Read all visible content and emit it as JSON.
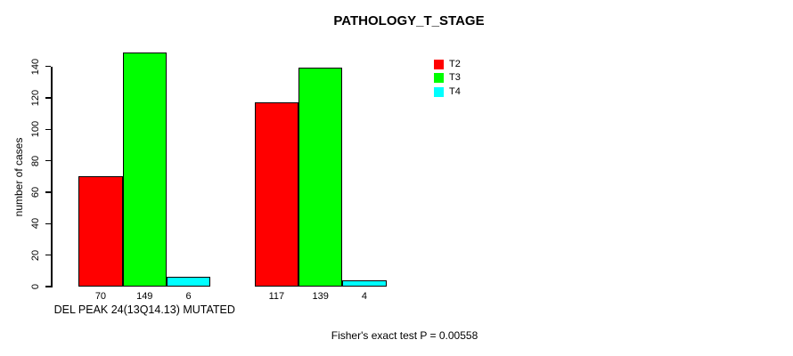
{
  "chart_data": {
    "type": "bar",
    "title": "PATHOLOGY_T_STAGE",
    "ylabel": "number of cases",
    "xlabel": "",
    "ylim": [
      0,
      140
    ],
    "yticks": [
      0,
      20,
      40,
      60,
      80,
      100,
      120,
      140
    ],
    "grid": false,
    "categories": [
      "DEL PEAK 24(13Q14.13) MUTATED",
      ""
    ],
    "series": [
      {
        "name": "T2",
        "color": "#FF0000",
        "values": [
          70,
          117
        ]
      },
      {
        "name": "T3",
        "color": "#00FF00",
        "values": [
          149,
          139
        ]
      },
      {
        "name": "T4",
        "color": "#00FFFF",
        "values": [
          6,
          4
        ]
      }
    ],
    "bar_value_labels": [
      [
        70,
        149,
        6
      ],
      [
        117,
        139,
        4
      ]
    ],
    "legend": {
      "position": "top-right",
      "entries": [
        "T2",
        "T3",
        "T4"
      ]
    },
    "footnote": "Fisher's exact test P = 0.00558"
  }
}
